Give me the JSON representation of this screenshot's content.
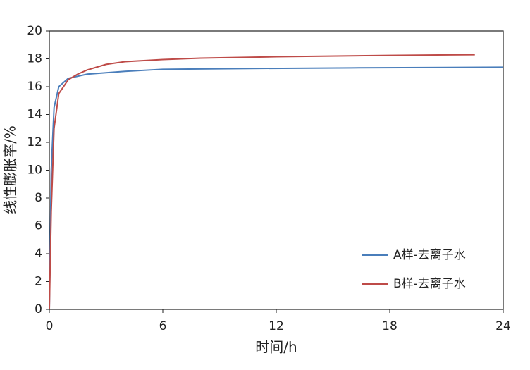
{
  "chart_data": {
    "type": "line",
    "x_label": "时间/h",
    "y_label": "线性膨胀率/%",
    "xlim": [
      0,
      24
    ],
    "xticks": [
      0,
      6,
      12,
      18,
      24
    ],
    "ylim": [
      0,
      20
    ],
    "yticks": [
      0,
      2,
      4,
      6,
      8,
      10,
      12,
      14,
      16,
      18,
      20
    ],
    "grid": false,
    "legend": "lower right",
    "series": [
      {
        "name": "A样-去离子水",
        "color": "#4a7ebb",
        "x": [
          0,
          0.1,
          0.25,
          0.5,
          1,
          2,
          4,
          6,
          10,
          16,
          24
        ],
        "values": [
          0,
          10,
          14.5,
          16,
          16.6,
          16.9,
          17.1,
          17.25,
          17.3,
          17.35,
          17.4
        ]
      },
      {
        "name": "B样-去离子水",
        "color": "#be4b48",
        "x": [
          0,
          0.1,
          0.25,
          0.5,
          1,
          1.5,
          2,
          3,
          4,
          6,
          8,
          12,
          18,
          22.5
        ],
        "values": [
          0,
          7,
          13,
          15.5,
          16.5,
          16.9,
          17.2,
          17.6,
          17.8,
          17.95,
          18.05,
          18.15,
          18.25,
          18.3
        ]
      }
    ]
  }
}
